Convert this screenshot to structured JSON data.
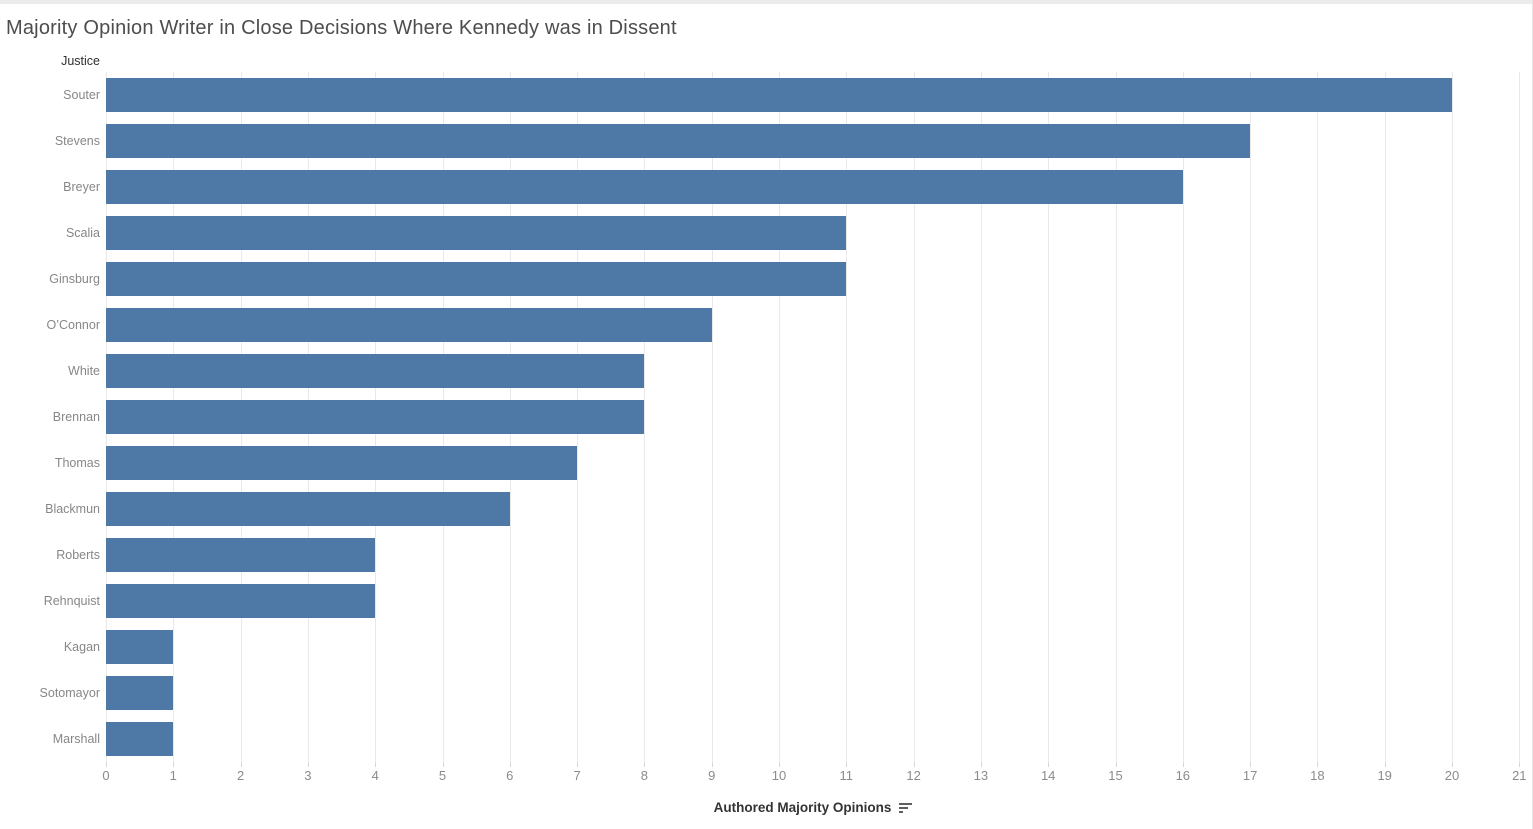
{
  "title": "Majority Opinion Writer in Close Decisions Where Kennedy was in Dissent",
  "row_header": "Justice",
  "x_axis": {
    "title": "Authored Majority Opinions",
    "sort_icon": "sort-descending-icon"
  },
  "colors": {
    "bar": "#4e79a7",
    "gridline": "#e9e9e9",
    "row_label": "#878787",
    "tick_label": "#8b8b8b",
    "title": "#4d4d4d",
    "axis_title": "#333333"
  },
  "chart_data": {
    "type": "bar",
    "orientation": "horizontal",
    "title": "Majority Opinion Writer in Close Decisions Where Kennedy was in Dissent",
    "categories": [
      "Souter",
      "Stevens",
      "Breyer",
      "Scalia",
      "Ginsburg",
      "O’Connor",
      "White",
      "Brennan",
      "Thomas",
      "Blackmun",
      "Roberts",
      "Rehnquist",
      "Kagan",
      "Sotomayor",
      "Marshall"
    ],
    "values": [
      20,
      17,
      16,
      11,
      11,
      9,
      8,
      8,
      7,
      6,
      4,
      4,
      1,
      1,
      1
    ],
    "xlabel": "Authored Majority Opinions",
    "ylabel": "Justice",
    "xlim": [
      0,
      21
    ],
    "x_ticks": [
      0,
      1,
      2,
      3,
      4,
      5,
      6,
      7,
      8,
      9,
      10,
      11,
      12,
      13,
      14,
      15,
      16,
      17,
      18,
      19,
      20,
      21
    ],
    "grid": true,
    "legend": false,
    "sort": "descending",
    "bar_color": "#4e79a7"
  }
}
